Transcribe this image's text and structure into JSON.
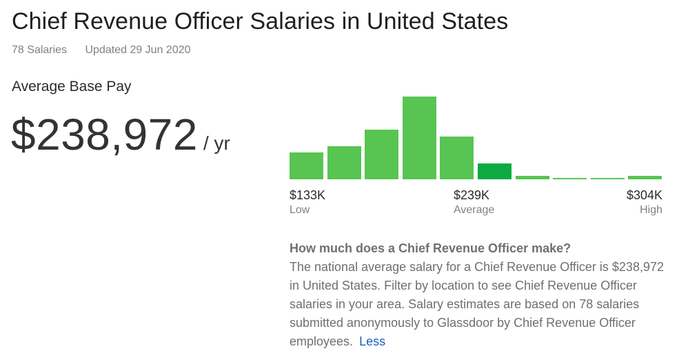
{
  "header": {
    "title": "Chief Revenue Officer Salaries in United States",
    "salaries_count": "78 Salaries",
    "updated": "Updated 29 Jun 2020"
  },
  "average_pay": {
    "label": "Average Base Pay",
    "amount": "$238,972",
    "unit": "/ yr"
  },
  "histogram": {
    "bar_values": [
      0.3,
      0.37,
      0.55,
      0.92,
      0.48,
      0.18,
      0.04,
      0.015,
      0.015,
      0.035
    ],
    "highlight_index": 5,
    "colors": {
      "bar": "#58c552",
      "highlight": "#0caa41"
    },
    "low": {
      "value": "$133K",
      "caption": "Low"
    },
    "average": {
      "value": "$239K",
      "caption": "Average"
    },
    "high": {
      "value": "$304K",
      "caption": "High"
    }
  },
  "faq": {
    "question": "How much does a Chief Revenue Officer make?",
    "answer": "The national average salary for a Chief Revenue Officer is $238,972 in United States. Filter by location to see Chief Revenue Officer salaries in your area. Salary estimates are based on 78 salaries submitted anonymously to Glassdoor by Chief Revenue Officer employees.",
    "less_link": "Less"
  }
}
